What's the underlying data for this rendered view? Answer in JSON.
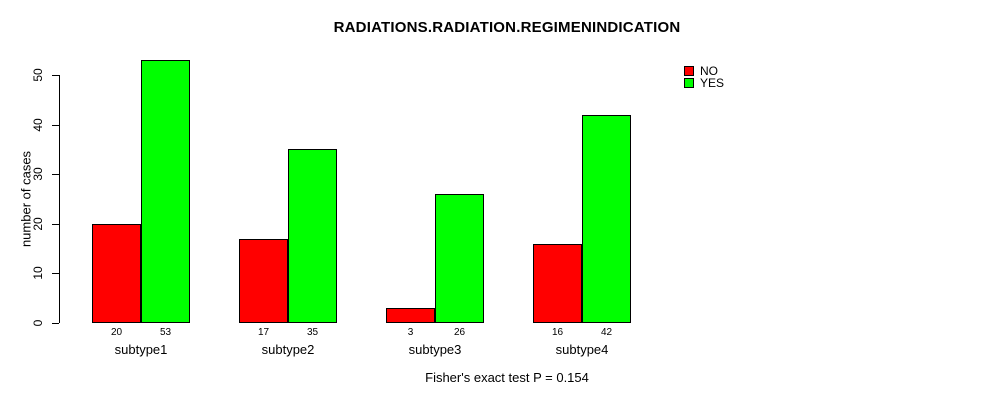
{
  "title": "RADIATIONS.RADIATION.REGIMENINDICATION",
  "chart_data": {
    "type": "bar",
    "title": "RADIATIONS.RADIATION.REGIMENINDICATION",
    "categories": [
      "subtype1",
      "subtype2",
      "subtype3",
      "subtype4"
    ],
    "series": [
      {
        "name": "NO",
        "color": "#ff0000",
        "values": [
          20,
          17,
          3,
          16
        ]
      },
      {
        "name": "YES",
        "color": "#00ff00",
        "values": [
          53,
          35,
          26,
          42
        ]
      }
    ],
    "xlabel": "",
    "ylabel": "number of cases",
    "ylim": [
      0,
      50
    ],
    "yticks": [
      0,
      10,
      20,
      30,
      40,
      50
    ],
    "bar_value_labels_shown": true,
    "grid": false,
    "legend_position": "top-right",
    "annotation": "Fisher's exact test P = 0.154"
  }
}
